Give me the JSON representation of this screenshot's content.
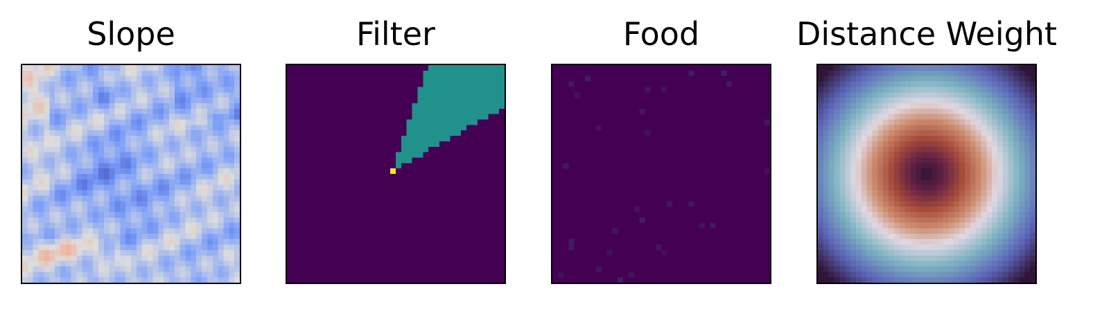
{
  "chart_data": [
    {
      "type": "heatmap",
      "title": "Slope",
      "grid": false,
      "axes": "hidden",
      "colormap": "coolwarm",
      "grid_size": [
        40,
        40
      ],
      "description_of_values": "blue-dominant relief map with a dark blue central ridge structure and pale/red patches near left and bottom edges"
    },
    {
      "type": "heatmap",
      "title": "Filter",
      "grid": false,
      "axes": "hidden",
      "colormap": "viridis",
      "grid_size": [
        40,
        40
      ],
      "background_value": 0,
      "wedge_value": 0.5,
      "origin_cell": {
        "row": 19,
        "col": 19,
        "value": 1
      },
      "wedge": {
        "from_angle_deg": 30,
        "to_angle_deg": 72,
        "direction": "up-right"
      }
    },
    {
      "type": "heatmap",
      "title": "Food",
      "grid": false,
      "axes": "hidden",
      "colormap": "viridis",
      "grid_size": [
        40,
        40
      ],
      "background_value": 0,
      "sparse_cells": [
        {
          "row": 1,
          "col": 25,
          "value": 0.08
        },
        {
          "row": 1,
          "col": 31,
          "value": 0.09
        },
        {
          "row": 2,
          "col": 6,
          "value": 0.08
        },
        {
          "row": 3,
          "col": 3,
          "value": 0.07
        },
        {
          "row": 3,
          "col": 32,
          "value": 0.07
        },
        {
          "row": 4,
          "col": 17,
          "value": 0.06
        },
        {
          "row": 4,
          "col": 20,
          "value": 0.05
        },
        {
          "row": 5,
          "col": 4,
          "value": 0.06
        },
        {
          "row": 8,
          "col": 16,
          "value": 0.06
        },
        {
          "row": 10,
          "col": 39,
          "value": 0.07
        },
        {
          "row": 11,
          "col": 8,
          "value": 0.05
        },
        {
          "row": 12,
          "col": 17,
          "value": 0.05
        },
        {
          "row": 18,
          "col": 2,
          "value": 0.07
        },
        {
          "row": 25,
          "col": 21,
          "value": 0.06
        },
        {
          "row": 25,
          "col": 25,
          "value": 0.06
        },
        {
          "row": 28,
          "col": 16,
          "value": 0.08
        },
        {
          "row": 29,
          "col": 27,
          "value": 0.05
        },
        {
          "row": 29,
          "col": 29,
          "value": 0.07
        },
        {
          "row": 30,
          "col": 11,
          "value": 0.06
        },
        {
          "row": 32,
          "col": 3,
          "value": 0.08
        },
        {
          "row": 33,
          "col": 3,
          "value": 0.07
        },
        {
          "row": 33,
          "col": 19,
          "value": 0.06
        },
        {
          "row": 34,
          "col": 10,
          "value": 0.05
        },
        {
          "row": 34,
          "col": 20,
          "value": 0.04
        },
        {
          "row": 37,
          "col": 8,
          "value": 0.06
        },
        {
          "row": 38,
          "col": 1,
          "value": 0.05
        },
        {
          "row": 38,
          "col": 14,
          "value": 0.06
        },
        {
          "row": 39,
          "col": 12,
          "value": 0.08
        },
        {
          "row": 19,
          "col": 39,
          "value": 0.04
        },
        {
          "row": 26,
          "col": 15,
          "value": 0.05
        }
      ]
    },
    {
      "type": "heatmap",
      "title": "Distance Weight",
      "grid": false,
      "axes": "hidden",
      "colormap": "twilight_shifted",
      "grid_size": [
        40,
        40
      ],
      "pattern": "radial, minimum at center, light ring at mid radius, dark purple corners"
    }
  ]
}
